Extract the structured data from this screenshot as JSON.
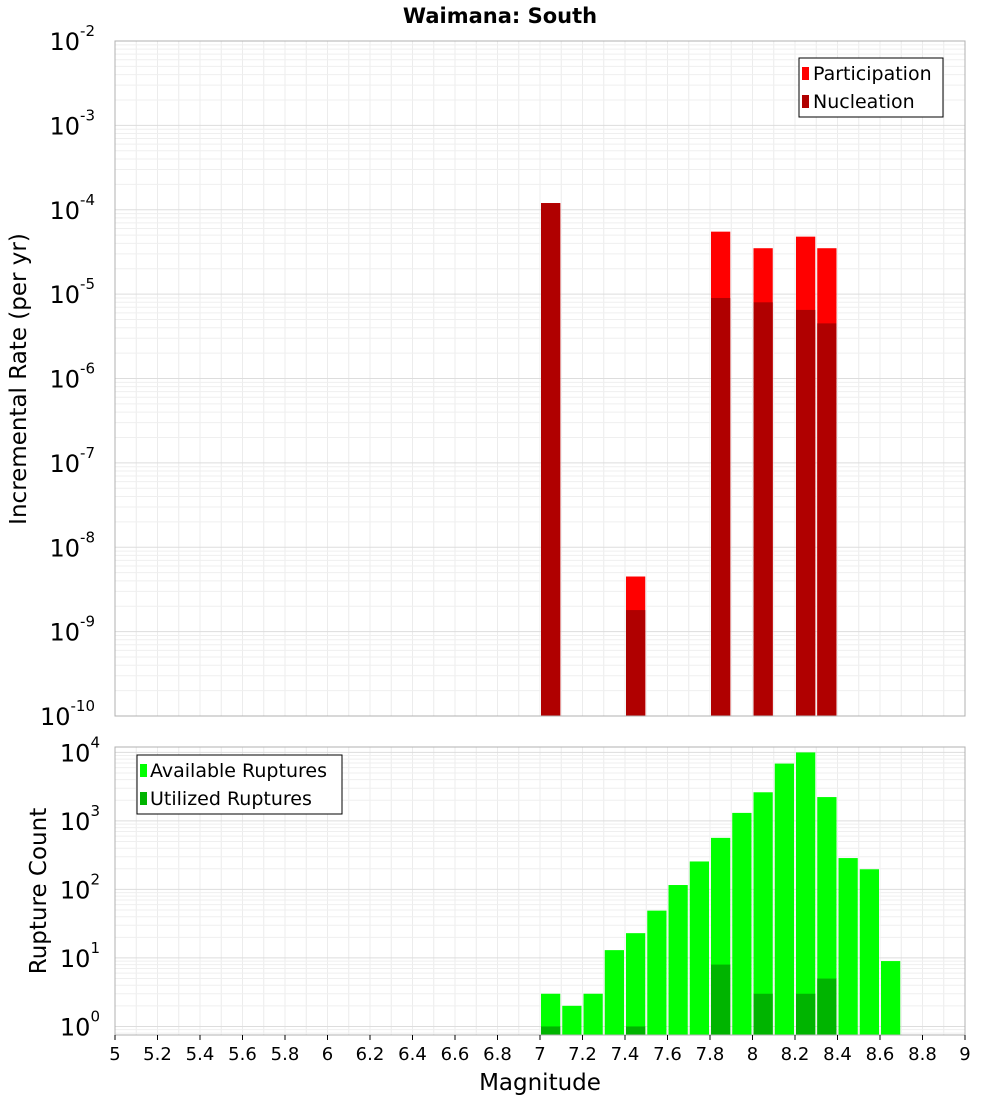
{
  "chart_data": [
    {
      "type": "bar",
      "title": "Waimana: South",
      "ylabel": "Incremental Rate (per yr)",
      "xlabel": "",
      "xlim": [
        5,
        9
      ],
      "ylim": [
        1e-10,
        0.01
      ],
      "y_scale": "log",
      "bar_width": 0.1,
      "grid": true,
      "legend_position": "top-right",
      "y_ticks": [
        {
          "base": "10",
          "exp": "-10"
        },
        {
          "base": "10",
          "exp": "-9"
        },
        {
          "base": "10",
          "exp": "-8"
        },
        {
          "base": "10",
          "exp": "-7"
        },
        {
          "base": "10",
          "exp": "-6"
        },
        {
          "base": "10",
          "exp": "-5"
        },
        {
          "base": "10",
          "exp": "-4"
        },
        {
          "base": "10",
          "exp": "-3"
        },
        {
          "base": "10",
          "exp": "-2"
        }
      ],
      "series": [
        {
          "name": "Participation",
          "color": "#ff0000",
          "x": [
            7.05,
            7.45,
            7.85,
            8.05,
            8.25,
            8.35
          ],
          "values": [
            0.00012,
            4.5e-09,
            5.5e-05,
            3.5e-05,
            4.8e-05,
            3.5e-05
          ]
        },
        {
          "name": "Nucleation",
          "color": "#b00000",
          "x": [
            7.05,
            7.45,
            7.85,
            8.05,
            8.25,
            8.35
          ],
          "values": [
            0.00012,
            1.8e-09,
            9e-06,
            8e-06,
            6.5e-06,
            4.5e-06
          ]
        }
      ]
    },
    {
      "type": "bar",
      "title": "",
      "ylabel": "Rupture Count",
      "xlabel": "Magnitude",
      "xlim": [
        5,
        9
      ],
      "ylim": [
        0.75,
        12000
      ],
      "y_scale": "log",
      "bar_width": 0.1,
      "grid": true,
      "legend_position": "top-left",
      "y_ticks": [
        {
          "base": "10",
          "exp": "0"
        },
        {
          "base": "10",
          "exp": "1"
        },
        {
          "base": "10",
          "exp": "2"
        },
        {
          "base": "10",
          "exp": "3"
        },
        {
          "base": "10",
          "exp": "4"
        }
      ],
      "x_ticks": [
        "5",
        "5.2",
        "5.4",
        "5.6",
        "5.8",
        "6",
        "6.2",
        "6.4",
        "6.6",
        "6.8",
        "7",
        "7.2",
        "7.4",
        "7.6",
        "7.8",
        "8",
        "8.2",
        "8.4",
        "8.6",
        "8.8",
        "9"
      ],
      "series": [
        {
          "name": "Available Ruptures",
          "color": "#00ff00",
          "x": [
            7.05,
            7.15,
            7.25,
            7.35,
            7.45,
            7.55,
            7.65,
            7.75,
            7.85,
            7.95,
            8.05,
            8.15,
            8.25,
            8.35,
            8.45,
            8.55,
            8.65
          ],
          "values": [
            3,
            2,
            3,
            13,
            23,
            49,
            116,
            256,
            566,
            1310,
            2620,
            6870,
            10000,
            2230,
            287,
            197,
            9
          ]
        },
        {
          "name": "Utilized Ruptures",
          "color": "#00b400",
          "x": [
            7.05,
            7.45,
            7.85,
            8.05,
            8.25,
            8.35
          ],
          "values": [
            1,
            1,
            8,
            3,
            3,
            5
          ]
        }
      ]
    }
  ]
}
